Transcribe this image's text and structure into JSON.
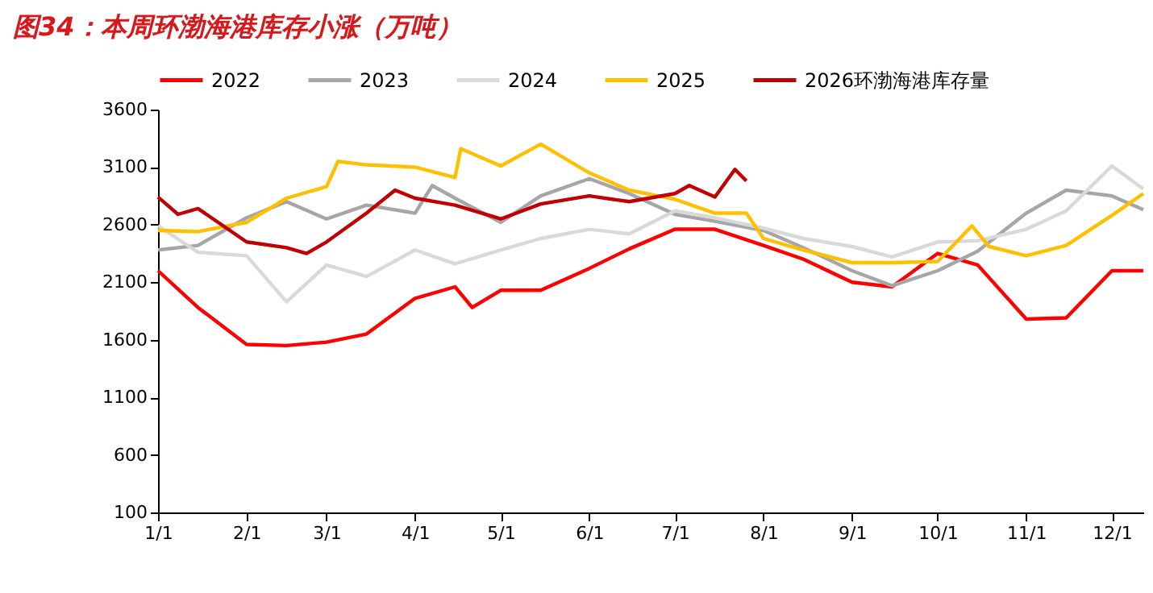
{
  "chart_data": {
    "type": "line",
    "title": "图34：本周环渤海港库存小涨（万吨）",
    "xlim": [
      "--01-01",
      "--12-12"
    ],
    "xticks": [
      {
        "value": "--01-01",
        "label": "1/1"
      },
      {
        "value": "--02-01",
        "label": "2/1"
      },
      {
        "value": "--03-01",
        "label": "3/1"
      },
      {
        "value": "--04-01",
        "label": "4/1"
      },
      {
        "value": "--05-01",
        "label": "5/1"
      },
      {
        "value": "--06-01",
        "label": "6/1"
      },
      {
        "value": "--07-01",
        "label": "7/1"
      },
      {
        "value": "--08-01",
        "label": "8/1"
      },
      {
        "value": "--09-01",
        "label": "9/1"
      },
      {
        "value": "--10-01",
        "label": "10/1"
      },
      {
        "value": "--11-01",
        "label": "11/1"
      },
      {
        "value": "--12-01",
        "label": "12/1"
      }
    ],
    "ylim": [
      100,
      3600
    ],
    "yticks": [
      100,
      600,
      1100,
      1600,
      2100,
      2600,
      3100,
      3600
    ],
    "legend": "top",
    "line_style": "solid",
    "series": [
      {
        "name": "2022",
        "color": "#ff0000",
        "x": [
          "--01-01",
          "--01-15",
          "--02-01",
          "--02-15",
          "--03-01",
          "--03-15",
          "--04-01",
          "--04-15",
          "--04-21",
          "--05-01",
          "--05-15",
          "--06-01",
          "--06-15",
          "--07-01",
          "--07-15",
          "--08-01",
          "--08-15",
          "--09-01",
          "--09-15",
          "--10-01",
          "--10-15",
          "--11-01",
          "--11-15",
          "--12-01",
          "--12-12"
        ],
        "values": [
          2200,
          1880,
          1560,
          1550,
          1580,
          1650,
          1960,
          2060,
          1880,
          2030,
          2030,
          2220,
          2390,
          2560,
          2560,
          2420,
          2300,
          2100,
          2060,
          2350,
          2250,
          1780,
          1790,
          2200,
          2200
        ]
      },
      {
        "name": "2023",
        "color": "#a6a6a6",
        "x": [
          "--01-01",
          "--01-15",
          "--02-01",
          "--02-15",
          "--03-01",
          "--03-15",
          "--04-01",
          "--04-07",
          "--04-15",
          "--05-01",
          "--05-15",
          "--06-01",
          "--06-15",
          "--07-01",
          "--07-15",
          "--08-01",
          "--08-15",
          "--09-01",
          "--09-15",
          "--10-01",
          "--10-15",
          "--11-01",
          "--11-15",
          "--12-01",
          "--12-12"
        ],
        "values": [
          2380,
          2420,
          2660,
          2800,
          2650,
          2770,
          2700,
          2940,
          2830,
          2620,
          2850,
          3000,
          2870,
          2690,
          2630,
          2550,
          2400,
          2200,
          2070,
          2200,
          2370,
          2700,
          2900,
          2850,
          2730
        ]
      },
      {
        "name": "2024",
        "color": "#d9d9d9",
        "x": [
          "--01-01",
          "--01-15",
          "--02-01",
          "--02-15",
          "--03-01",
          "--03-15",
          "--04-01",
          "--04-15",
          "--05-01",
          "--05-15",
          "--06-01",
          "--06-15",
          "--07-01",
          "--07-15",
          "--08-01",
          "--08-15",
          "--09-01",
          "--09-15",
          "--10-01",
          "--10-15",
          "--11-01",
          "--11-15",
          "--12-01",
          "--12-12"
        ],
        "values": [
          2590,
          2360,
          2330,
          1930,
          2250,
          2150,
          2380,
          2260,
          2380,
          2480,
          2560,
          2520,
          2720,
          2660,
          2570,
          2480,
          2410,
          2320,
          2450,
          2460,
          2560,
          2720,
          3110,
          2910
        ]
      },
      {
        "name": "2025",
        "color": "#ffc000",
        "x": [
          "--01-01",
          "--01-15",
          "--02-01",
          "--02-15",
          "--03-01",
          "--03-05",
          "--03-15",
          "--04-01",
          "--04-15",
          "--04-17",
          "--05-01",
          "--05-15",
          "--06-01",
          "--06-15",
          "--07-01",
          "--07-15",
          "--07-26",
          "--08-01",
          "--08-15",
          "--09-01",
          "--09-15",
          "--10-01",
          "--10-13",
          "--10-19",
          "--11-01",
          "--11-15",
          "--12-01",
          "--12-12"
        ],
        "values": [
          2550,
          2540,
          2620,
          2830,
          2930,
          3150,
          3120,
          3100,
          3010,
          3260,
          3110,
          3300,
          3050,
          2900,
          2820,
          2700,
          2700,
          2480,
          2380,
          2270,
          2270,
          2280,
          2590,
          2410,
          2330,
          2420,
          2680,
          2870
        ]
      },
      {
        "name": "2026环渤海港库存量",
        "color": "#c00000",
        "x": [
          "--01-01",
          "--01-08",
          "--01-15",
          "--02-01",
          "--02-15",
          "--02-22",
          "--03-01",
          "--03-15",
          "--03-25",
          "--04-01",
          "--04-15",
          "--05-01",
          "--05-15",
          "--06-01",
          "--06-15",
          "--07-01",
          "--07-06",
          "--07-15",
          "--07-22",
          "--07-26"
        ],
        "values": [
          2840,
          2690,
          2740,
          2450,
          2400,
          2350,
          2450,
          2700,
          2900,
          2830,
          2770,
          2650,
          2780,
          2850,
          2800,
          2870,
          2940,
          2840,
          3080,
          2980
        ]
      }
    ]
  }
}
